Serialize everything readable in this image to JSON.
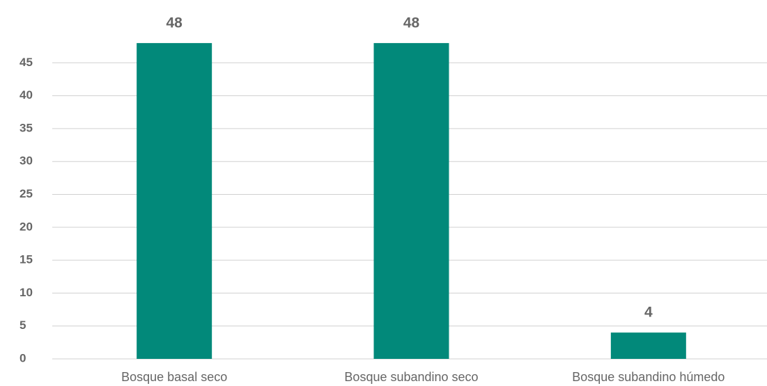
{
  "chart_data": {
    "type": "bar",
    "categories": [
      "Bosque basal seco",
      "Bosque subandino seco",
      "Bosque subandino húmedo"
    ],
    "values": [
      48,
      48,
      4
    ],
    "color": "#02897a",
    "ylim": [
      0,
      50
    ],
    "yticks": [
      0,
      5,
      10,
      15,
      20,
      25,
      30,
      35,
      40,
      45
    ],
    "grid": true
  }
}
